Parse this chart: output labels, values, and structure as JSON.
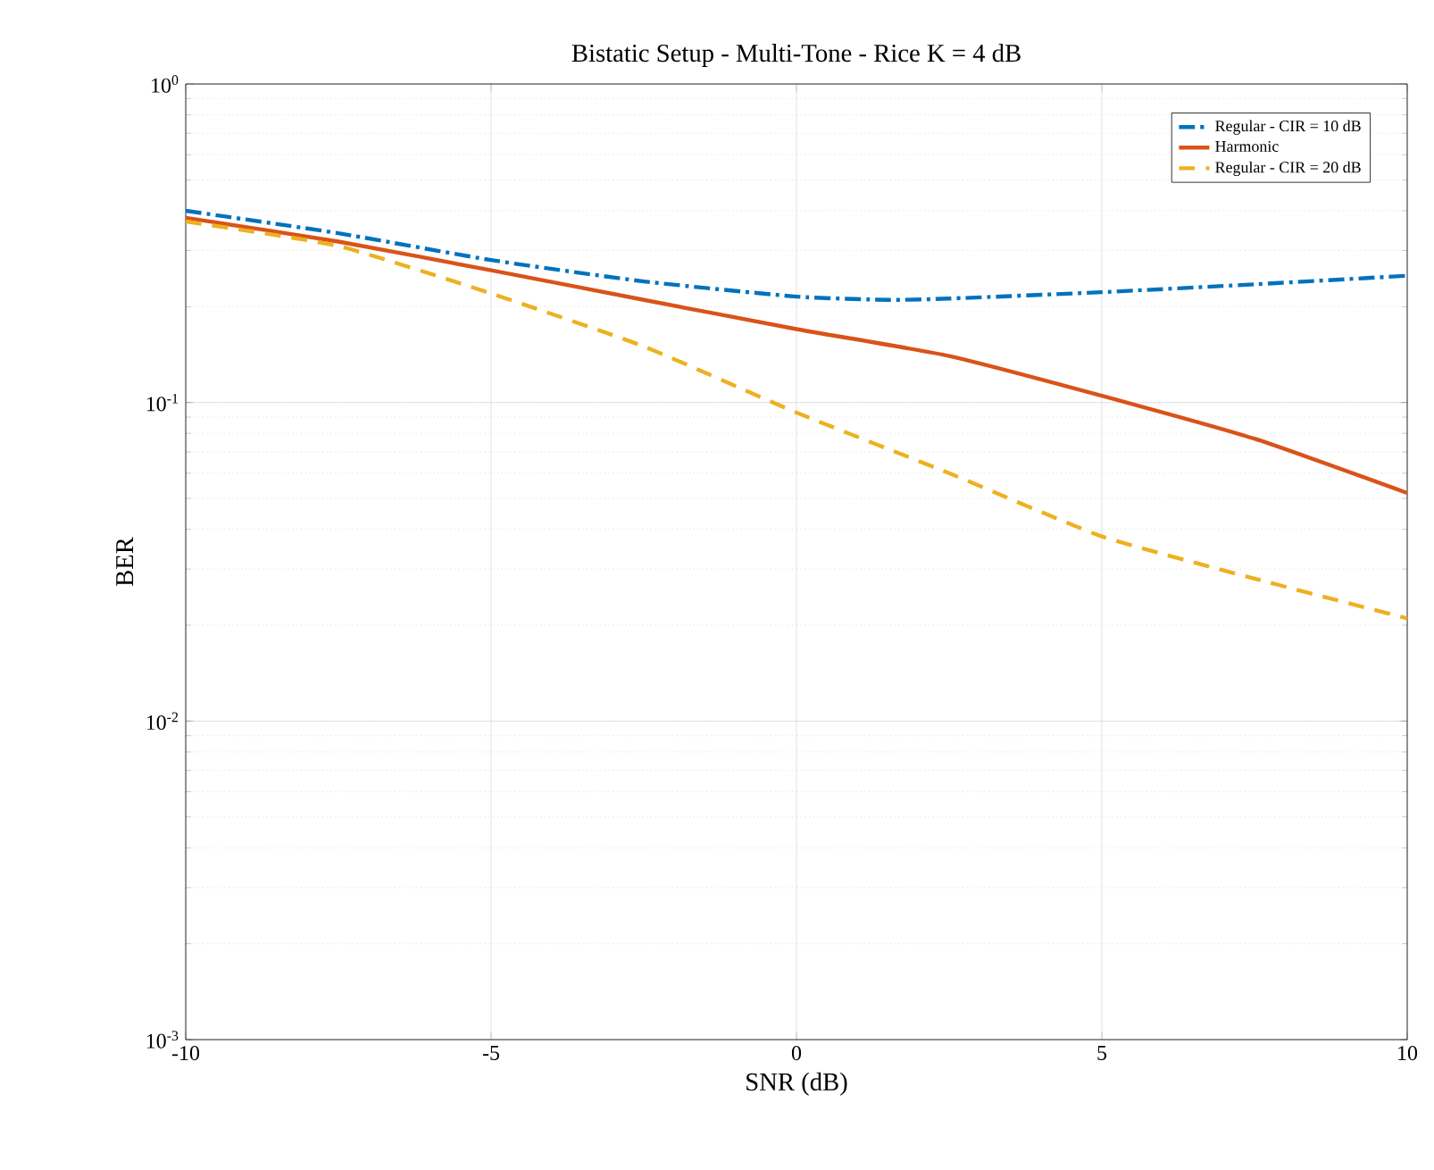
{
  "chart_data": {
    "type": "line",
    "title": "Bistatic Setup - Multi-Tone - Rice K = 4 dB",
    "xlabel": "SNR (dB)",
    "ylabel": "BER",
    "log": "y",
    "grid": true,
    "legend": "top right",
    "xlim": [
      -10,
      10
    ],
    "xticks": [
      -10,
      -5,
      0,
      5,
      10
    ],
    "ylim": [
      0.001,
      1
    ],
    "yticks": [
      {
        "value": 0.001,
        "label": "10$^{-3}$"
      },
      {
        "value": 0.01,
        "label": "10$^{-2}$"
      },
      {
        "value": 0.1,
        "label": "10$^{-1}$"
      },
      {
        "value": 1,
        "label": "10$^{0}$"
      }
    ],
    "series": [
      {
        "name": "Regular - CIR = 10 dB",
        "color": "#0072bd",
        "line_style": "dashdot",
        "x": [
          -10,
          -7.5,
          -5,
          -2.5,
          0,
          1.5,
          2.5,
          5,
          7.5,
          10
        ],
        "values": [
          0.4,
          0.34,
          0.28,
          0.24,
          0.215,
          0.21,
          0.212,
          0.222,
          0.235,
          0.25
        ]
      },
      {
        "name": "Harmonic",
        "color": "#d95319",
        "line_style": "solid",
        "x": [
          -10,
          -7.5,
          -5,
          -2.5,
          0,
          2.5,
          5,
          7.5,
          10
        ],
        "values": [
          0.38,
          0.32,
          0.26,
          0.21,
          0.17,
          0.14,
          0.105,
          0.077,
          0.052
        ]
      },
      {
        "name": "Regular - CIR = 20 dB",
        "color": "#edb120",
        "line_style": "dashed",
        "x": [
          -10,
          -7.5,
          -5,
          -2.5,
          0,
          2.5,
          5,
          7.5,
          10
        ],
        "values": [
          0.37,
          0.31,
          0.22,
          0.15,
          0.093,
          0.06,
          0.038,
          0.028,
          0.021
        ]
      }
    ]
  }
}
